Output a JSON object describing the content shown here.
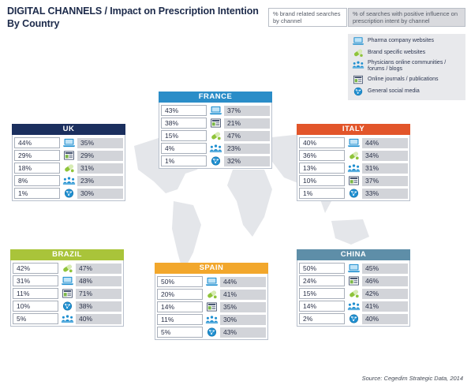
{
  "title": {
    "line1": "DIGITAL CHANNELS / Impact on Prescription Intention",
    "line2": "By Country"
  },
  "header": {
    "left": "% brand related searches by channel",
    "right": "% of searches with positive influence on prescription intent by channel"
  },
  "legend": [
    {
      "icon": "laptop-icon",
      "label": "Pharma company websites"
    },
    {
      "icon": "pill-icon",
      "label": "Brand specific websites"
    },
    {
      "icon": "people-icon",
      "label": "Physicians online communities / forums / blogs"
    },
    {
      "icon": "journal-icon",
      "label": "Online journals / publications"
    },
    {
      "icon": "globe-icon",
      "label": "General social media"
    }
  ],
  "countries": {
    "uk": {
      "name": "UK",
      "color": "#1b2f5e",
      "rows": [
        {
          "left": "44%",
          "icon": "laptop-icon",
          "right": "35%"
        },
        {
          "left": "29%",
          "icon": "journal-icon",
          "right": "29%"
        },
        {
          "left": "18%",
          "icon": "pill-icon",
          "right": "31%"
        },
        {
          "left": "8%",
          "icon": "people-icon",
          "right": "23%"
        },
        {
          "left": "1%",
          "icon": "globe-icon",
          "right": "30%"
        }
      ]
    },
    "france": {
      "name": "FRANCE",
      "color": "#2a8dc8",
      "rows": [
        {
          "left": "43%",
          "icon": "laptop-icon",
          "right": "37%"
        },
        {
          "left": "38%",
          "icon": "journal-icon",
          "right": "21%"
        },
        {
          "left": "15%",
          "icon": "pill-icon",
          "right": "47%"
        },
        {
          "left": "4%",
          "icon": "people-icon",
          "right": "23%"
        },
        {
          "left": "1%",
          "icon": "globe-icon",
          "right": "32%"
        }
      ]
    },
    "italy": {
      "name": "ITALY",
      "color": "#e2552a",
      "rows": [
        {
          "left": "40%",
          "icon": "laptop-icon",
          "right": "44%"
        },
        {
          "left": "36%",
          "icon": "pill-icon",
          "right": "34%"
        },
        {
          "left": "13%",
          "icon": "people-icon",
          "right": "31%"
        },
        {
          "left": "10%",
          "icon": "journal-icon",
          "right": "37%"
        },
        {
          "left": "1%",
          "icon": "globe-icon",
          "right": "33%"
        }
      ]
    },
    "brazil": {
      "name": "BRAZIL",
      "color": "#a9c43a",
      "rows": [
        {
          "left": "42%",
          "icon": "pill-icon",
          "right": "47%"
        },
        {
          "left": "31%",
          "icon": "laptop-icon",
          "right": "48%"
        },
        {
          "left": "11%",
          "icon": "journal-icon",
          "right": "71%"
        },
        {
          "left": "10%",
          "icon": "globe-icon",
          "right": "38%"
        },
        {
          "left": "5%",
          "icon": "people-icon",
          "right": "40%"
        }
      ]
    },
    "spain": {
      "name": "SPAIN",
      "color": "#f2a72c",
      "rows": [
        {
          "left": "50%",
          "icon": "laptop-icon",
          "right": "44%"
        },
        {
          "left": "20%",
          "icon": "pill-icon",
          "right": "41%"
        },
        {
          "left": "14%",
          "icon": "journal-icon",
          "right": "35%"
        },
        {
          "left": "11%",
          "icon": "people-icon",
          "right": "30%"
        },
        {
          "left": "5%",
          "icon": "globe-icon",
          "right": "43%"
        }
      ]
    },
    "china": {
      "name": "CHINA",
      "color": "#5e8ea8",
      "rows": [
        {
          "left": "50%",
          "icon": "laptop-icon",
          "right": "45%"
        },
        {
          "left": "24%",
          "icon": "journal-icon",
          "right": "46%"
        },
        {
          "left": "15%",
          "icon": "pill-icon",
          "right": "42%"
        },
        {
          "left": "14%",
          "icon": "people-icon",
          "right": "41%"
        },
        {
          "left": "2%",
          "icon": "globe-icon",
          "right": "40%"
        }
      ]
    }
  },
  "source": "Source: Cegedim Strategic Data, 2014"
}
